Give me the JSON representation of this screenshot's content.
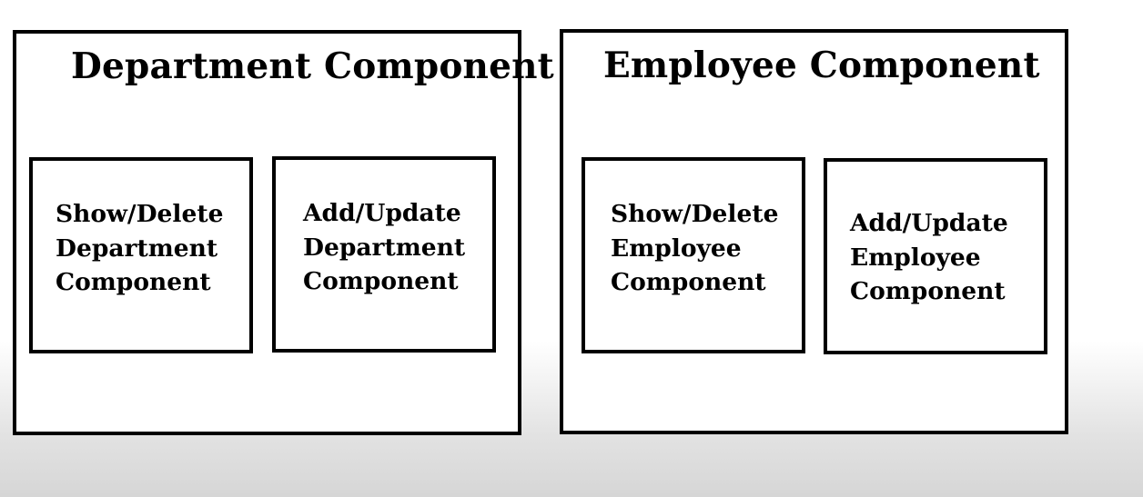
{
  "department": {
    "title": "Department Component",
    "show_delete_label": "Show/Delete\nDepartment\nComponent",
    "add_update_label": "Add/Update\nDepartment\nComponent"
  },
  "employee": {
    "title": "Employee Component",
    "show_delete_label": "Show/Delete\nEmployee\nComponent",
    "add_update_label": "Add/Update\nEmployee\nComponent"
  }
}
